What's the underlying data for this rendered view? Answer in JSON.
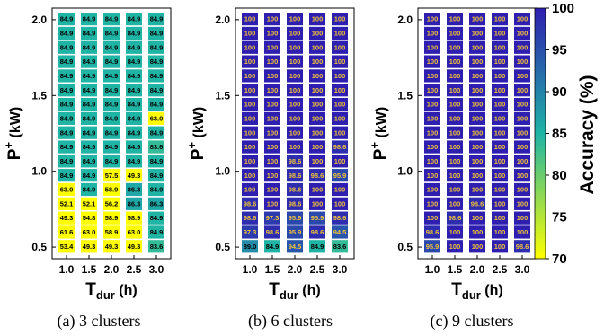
{
  "chart_data": [
    {
      "type": "heatmap",
      "caption": "(a) 3 clusters",
      "xlabel": "T",
      "xlabel_sub": "dur",
      "xlabel_unit": " (h)",
      "ylabel": "P",
      "ylabel_sup": "+",
      "ylabel_unit": " (kW)",
      "x": [
        1.0,
        1.5,
        2.0,
        2.5,
        3.0
      ],
      "x_ticks": [
        "1.0",
        "1.5",
        "2.0",
        "2.5",
        "3.0"
      ],
      "y_ticks": [
        "0.5",
        "1.0",
        "1.5",
        "2.0"
      ],
      "ylim": [
        0.5,
        2.0
      ],
      "rows_top_to_bottom": [
        [
          "84.9",
          "84.9",
          "84.9",
          "84.9",
          "84.9"
        ],
        [
          "84.9",
          "84.9",
          "84.9",
          "84.9",
          "84.9"
        ],
        [
          "84.9",
          "84.9",
          "84.9",
          "84.9",
          "84.9"
        ],
        [
          "84.9",
          "84.9",
          "84.9",
          "84.9",
          "84.9"
        ],
        [
          "84.9",
          "84.9",
          "84.9",
          "84.9",
          "84.9"
        ],
        [
          "84.9",
          "84.9",
          "84.9",
          "84.9",
          "84.9"
        ],
        [
          "84.9",
          "84.9",
          "84.9",
          "84.9",
          "84.9"
        ],
        [
          "84.9",
          "84.9",
          "84.9",
          "84.9",
          "63.0"
        ],
        [
          "84.9",
          "84.9",
          "84.9",
          "84.9",
          "84.9"
        ],
        [
          "84.9",
          "84.9",
          "84.9",
          "84.9",
          "83.6"
        ],
        [
          "84.9",
          "84.9",
          "84.9",
          "84.9",
          "84.9"
        ],
        [
          "84.9",
          "84.9",
          "57.5",
          "49.3",
          "84.9"
        ],
        [
          "63.0",
          "84.9",
          "58.9",
          "86.3",
          "84.9"
        ],
        [
          "52.1",
          "52.1",
          "56.2",
          "86.3",
          "86.3"
        ],
        [
          "49.3",
          "54.8",
          "58.9",
          "58.9",
          "84.9"
        ],
        [
          "61.6",
          "63.0",
          "58.9",
          "63.0",
          "84.9"
        ],
        [
          "53.4",
          "49.3",
          "49.3",
          "49.3",
          "83.6"
        ]
      ]
    },
    {
      "type": "heatmap",
      "caption": "(b) 6 clusters",
      "xlabel": "T",
      "xlabel_sub": "dur",
      "xlabel_unit": " (h)",
      "ylabel": "P",
      "ylabel_sup": "+",
      "ylabel_unit": " (kW)",
      "x": [
        1.0,
        1.5,
        2.0,
        2.5,
        3.0
      ],
      "x_ticks": [
        "1.0",
        "1.5",
        "2.0",
        "2.5",
        "3.0"
      ],
      "y_ticks": [
        "0.5",
        "1.0",
        "1.5",
        "2.0"
      ],
      "ylim": [
        0.5,
        2.0
      ],
      "rows_top_to_bottom": [
        [
          "100",
          "100",
          "100",
          "100",
          "100"
        ],
        [
          "100",
          "100",
          "100",
          "100",
          "100"
        ],
        [
          "100",
          "100",
          "100",
          "100",
          "100"
        ],
        [
          "100",
          "100",
          "100",
          "100",
          "100"
        ],
        [
          "100",
          "100",
          "100",
          "100",
          "100"
        ],
        [
          "100",
          "100",
          "100",
          "100",
          "100"
        ],
        [
          "100",
          "100",
          "100",
          "100",
          "100"
        ],
        [
          "100",
          "100",
          "100",
          "100",
          "100"
        ],
        [
          "100",
          "100",
          "100",
          "100",
          "100"
        ],
        [
          "100",
          "100",
          "100",
          "100",
          "98.6"
        ],
        [
          "100",
          "100",
          "98.6",
          "100",
          "100"
        ],
        [
          "100",
          "100",
          "98.6",
          "98.6",
          "95.9"
        ],
        [
          "100",
          "100",
          "98.6",
          "100",
          "100"
        ],
        [
          "98.6",
          "100",
          "98.6",
          "100",
          "100"
        ],
        [
          "98.6",
          "97.3",
          "95.9",
          "95.9",
          "98.6"
        ],
        [
          "97.3",
          "98.6",
          "95.9",
          "98.6",
          "94.5"
        ],
        [
          "89.0",
          "84.9",
          "94.5",
          "84.9",
          "83.6"
        ]
      ]
    },
    {
      "type": "heatmap",
      "caption": "(c) 9 clusters",
      "xlabel": "T",
      "xlabel_sub": "dur",
      "xlabel_unit": " (h)",
      "ylabel": "P",
      "ylabel_sup": "+",
      "ylabel_unit": " (kW)",
      "x": [
        1.0,
        1.5,
        2.0,
        2.5,
        3.0
      ],
      "x_ticks": [
        "1.0",
        "1.5",
        "2.0",
        "2.5",
        "3.0"
      ],
      "y_ticks": [
        "0.5",
        "1.0",
        "1.5",
        "2.0"
      ],
      "ylim": [
        0.5,
        2.0
      ],
      "rows_top_to_bottom": [
        [
          "100",
          "100",
          "100",
          "100",
          "100"
        ],
        [
          "100",
          "100",
          "100",
          "100",
          "100"
        ],
        [
          "100",
          "100",
          "100",
          "100",
          "100"
        ],
        [
          "100",
          "100",
          "100",
          "100",
          "100"
        ],
        [
          "100",
          "100",
          "100",
          "100",
          "100"
        ],
        [
          "100",
          "100",
          "100",
          "100",
          "100"
        ],
        [
          "100",
          "100",
          "100",
          "100",
          "100"
        ],
        [
          "100",
          "100",
          "100",
          "100",
          "100"
        ],
        [
          "100",
          "100",
          "100",
          "100",
          "100"
        ],
        [
          "100",
          "100",
          "100",
          "100",
          "100"
        ],
        [
          "100",
          "100",
          "100",
          "100",
          "100"
        ],
        [
          "100",
          "100",
          "100",
          "100",
          "100"
        ],
        [
          "100",
          "100",
          "100",
          "100",
          "100"
        ],
        [
          "100",
          "100",
          "98.6",
          "100",
          "100"
        ],
        [
          "100",
          "98.6",
          "100",
          "100",
          "100"
        ],
        [
          "98.6",
          "100",
          "100",
          "100",
          "100"
        ],
        [
          "95.9",
          "100",
          "100",
          "100",
          "98.6"
        ]
      ]
    }
  ],
  "colorbar": {
    "label": "Accuracy (%)",
    "min": 70,
    "max": 100,
    "ticks": [
      "70",
      "75",
      "80",
      "85",
      "90",
      "95",
      "100"
    ],
    "stops": [
      "#ffff00",
      "#1fb4a6",
      "#2f1fb0"
    ]
  }
}
